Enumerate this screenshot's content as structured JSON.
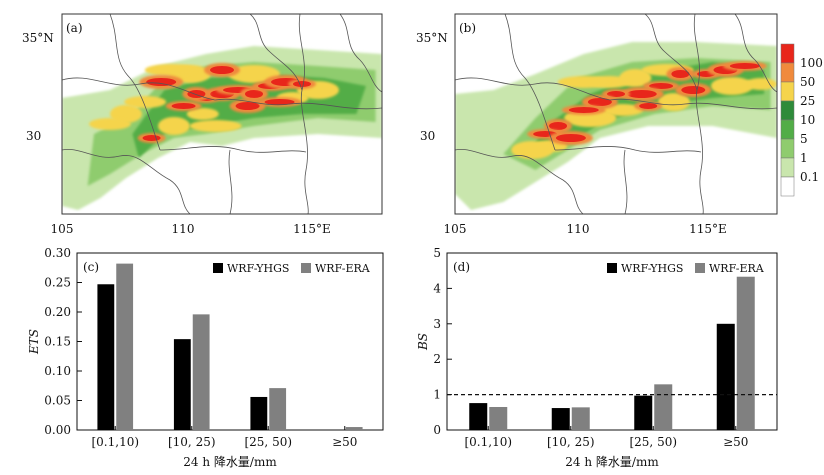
{
  "maps": [
    {
      "label": "(a)",
      "lon_ticks": [
        "105",
        "110",
        "115°E"
      ],
      "lat_ticks": [
        "35°N",
        "30"
      ],
      "cores": [
        [
          0.45,
          0.42
        ],
        [
          0.5,
          0.4
        ],
        [
          0.55,
          0.38
        ],
        [
          0.6,
          0.4
        ],
        [
          0.65,
          0.36
        ],
        [
          0.7,
          0.34
        ],
        [
          0.75,
          0.35
        ],
        [
          0.58,
          0.46
        ],
        [
          0.68,
          0.44
        ],
        [
          0.42,
          0.4
        ],
        [
          0.38,
          0.46
        ],
        [
          0.31,
          0.34
        ],
        [
          0.28,
          0.62
        ],
        [
          0.5,
          0.28
        ]
      ],
      "warm": [
        [
          0.44,
          0.5
        ],
        [
          0.4,
          0.3
        ],
        [
          0.34,
          0.28
        ],
        [
          0.2,
          0.5
        ],
        [
          0.15,
          0.55
        ],
        [
          0.6,
          0.3
        ],
        [
          0.72,
          0.42
        ],
        [
          0.8,
          0.38
        ],
        [
          0.48,
          0.56
        ],
        [
          0.35,
          0.56
        ],
        [
          0.26,
          0.44
        ]
      ],
      "bands": [
        [
          [
            0.0,
            0.42
          ],
          [
            0.15,
            0.38
          ],
          [
            0.3,
            0.26
          ],
          [
            0.45,
            0.2
          ],
          [
            0.6,
            0.16
          ],
          [
            0.8,
            0.18
          ],
          [
            1.0,
            0.2
          ],
          [
            1.0,
            0.62
          ],
          [
            0.8,
            0.6
          ],
          [
            0.6,
            0.62
          ],
          [
            0.5,
            0.66
          ],
          [
            0.4,
            0.64
          ],
          [
            0.3,
            0.72
          ],
          [
            0.2,
            0.82
          ],
          [
            0.12,
            0.92
          ],
          [
            0.05,
            0.98
          ],
          [
            0.0,
            0.96
          ]
        ],
        [
          [
            0.1,
            0.6
          ],
          [
            0.22,
            0.5
          ],
          [
            0.32,
            0.32
          ],
          [
            0.45,
            0.26
          ],
          [
            0.6,
            0.24
          ],
          [
            0.8,
            0.26
          ],
          [
            0.98,
            0.28
          ],
          [
            0.98,
            0.54
          ],
          [
            0.8,
            0.52
          ],
          [
            0.6,
            0.56
          ],
          [
            0.45,
            0.6
          ],
          [
            0.35,
            0.62
          ],
          [
            0.25,
            0.7
          ],
          [
            0.15,
            0.8
          ],
          [
            0.08,
            0.86
          ]
        ],
        [
          [
            0.22,
            0.6
          ],
          [
            0.32,
            0.38
          ],
          [
            0.45,
            0.32
          ],
          [
            0.62,
            0.3
          ],
          [
            0.82,
            0.32
          ],
          [
            0.95,
            0.36
          ],
          [
            0.92,
            0.5
          ],
          [
            0.75,
            0.5
          ],
          [
            0.6,
            0.52
          ],
          [
            0.45,
            0.56
          ],
          [
            0.32,
            0.6
          ],
          [
            0.24,
            0.72
          ]
        ]
      ]
    },
    {
      "label": "(b)",
      "lon_ticks": [
        "105",
        "110",
        "115°E"
      ],
      "lat_ticks": [
        "35°N",
        "30"
      ],
      "cores": [
        [
          0.78,
          0.3
        ],
        [
          0.84,
          0.28
        ],
        [
          0.9,
          0.26
        ],
        [
          0.7,
          0.3
        ],
        [
          0.64,
          0.36
        ],
        [
          0.58,
          0.4
        ],
        [
          0.5,
          0.4
        ],
        [
          0.45,
          0.44
        ],
        [
          0.4,
          0.48
        ],
        [
          0.32,
          0.56
        ],
        [
          0.28,
          0.6
        ],
        [
          0.36,
          0.62
        ],
        [
          0.6,
          0.46
        ],
        [
          0.74,
          0.38
        ]
      ],
      "warm": [
        [
          0.95,
          0.35
        ],
        [
          0.86,
          0.36
        ],
        [
          0.66,
          0.28
        ],
        [
          0.56,
          0.32
        ],
        [
          0.48,
          0.34
        ],
        [
          0.42,
          0.52
        ],
        [
          0.3,
          0.66
        ],
        [
          0.24,
          0.68
        ],
        [
          0.4,
          0.34
        ],
        [
          0.68,
          0.44
        ],
        [
          0.52,
          0.48
        ]
      ],
      "bands": [
        [
          [
            0.0,
            0.4
          ],
          [
            0.12,
            0.38
          ],
          [
            0.25,
            0.3
          ],
          [
            0.4,
            0.2
          ],
          [
            0.55,
            0.14
          ],
          [
            0.75,
            0.14
          ],
          [
            1.0,
            0.16
          ],
          [
            1.0,
            0.62
          ],
          [
            0.8,
            0.56
          ],
          [
            0.6,
            0.56
          ],
          [
            0.45,
            0.62
          ],
          [
            0.35,
            0.74
          ],
          [
            0.25,
            0.84
          ],
          [
            0.15,
            0.94
          ],
          [
            0.05,
            0.98
          ],
          [
            0.0,
            0.9
          ]
        ],
        [
          [
            0.15,
            0.7
          ],
          [
            0.25,
            0.52
          ],
          [
            0.38,
            0.32
          ],
          [
            0.55,
            0.24
          ],
          [
            0.75,
            0.22
          ],
          [
            0.98,
            0.24
          ],
          [
            0.98,
            0.48
          ],
          [
            0.8,
            0.46
          ],
          [
            0.62,
            0.5
          ],
          [
            0.45,
            0.58
          ],
          [
            0.35,
            0.68
          ],
          [
            0.25,
            0.78
          ]
        ],
        [
          [
            0.22,
            0.7
          ],
          [
            0.3,
            0.54
          ],
          [
            0.42,
            0.4
          ],
          [
            0.58,
            0.3
          ],
          [
            0.8,
            0.24
          ],
          [
            0.96,
            0.28
          ],
          [
            0.96,
            0.4
          ],
          [
            0.8,
            0.42
          ],
          [
            0.62,
            0.46
          ],
          [
            0.46,
            0.54
          ],
          [
            0.34,
            0.66
          ]
        ]
      ]
    }
  ],
  "colorbar": {
    "labels": [
      "100",
      "50",
      "25",
      "10",
      "5",
      "1",
      "0.1"
    ],
    "colors": [
      "#e8261b",
      "#f08a3c",
      "#f5d44b",
      "#2e8b3a",
      "#52ad47",
      "#8fcc6e",
      "#c9e6ad",
      "#ffffff"
    ]
  },
  "chart_data": [
    {
      "type": "bar",
      "panel_label": "(c)",
      "categories": [
        "[0.1,10)",
        "[10, 25)",
        "[25, 50)",
        "≥50"
      ],
      "series": [
        {
          "name": "WRF-YHGS",
          "color": "#000000",
          "values": [
            0.247,
            0.154,
            0.056,
            0.0
          ]
        },
        {
          "name": "WRF-ERA",
          "color": "#808080",
          "values": [
            0.282,
            0.196,
            0.071,
            0.005
          ]
        }
      ],
      "xlabel": "24 h 降水量/mm",
      "ylabel": "ETS",
      "ylim": [
        0,
        0.3
      ],
      "yticks": [
        "0.00",
        "0.05",
        "0.10",
        "0.15",
        "0.20",
        "0.25",
        "0.30"
      ],
      "reference_line": null,
      "legend": "top-right"
    },
    {
      "type": "bar",
      "panel_label": "(d)",
      "categories": [
        "[0.1,10)",
        "[10, 25)",
        "[25, 50)",
        "≥50"
      ],
      "series": [
        {
          "name": "WRF-YHGS",
          "color": "#000000",
          "values": [
            0.76,
            0.62,
            0.97,
            3.0
          ]
        },
        {
          "name": "WRF-ERA",
          "color": "#808080",
          "values": [
            0.65,
            0.64,
            1.29,
            4.33
          ]
        }
      ],
      "xlabel": "24 h 降水量/mm",
      "ylabel": "BS",
      "ylim": [
        0,
        5
      ],
      "yticks": [
        "0",
        "1",
        "2",
        "3",
        "4",
        "5"
      ],
      "reference_line": 1,
      "legend": "top-right"
    }
  ]
}
